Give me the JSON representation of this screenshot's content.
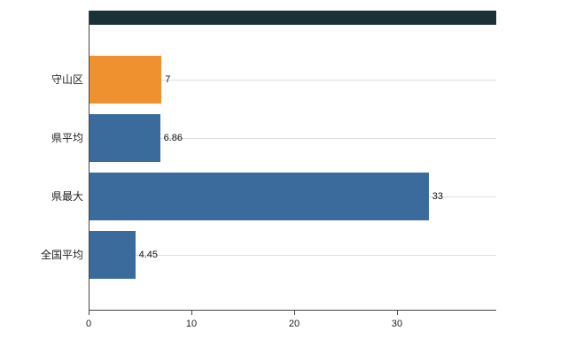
{
  "chart_data": {
    "type": "bar",
    "orientation": "horizontal",
    "title": "",
    "categories": [
      "守山区",
      "県平均",
      "県最大",
      "全国平均"
    ],
    "values": [
      7,
      6.86,
      33,
      4.45
    ],
    "value_labels": [
      "7",
      "6.86",
      "33",
      "4.45"
    ],
    "bar_colors": [
      "#f0912f",
      "#3a6b9c",
      "#3a6b9c",
      "#3a6b9c"
    ],
    "x_ticks": [
      "0",
      "10",
      "20",
      "30"
    ],
    "x_tick_values": [
      0,
      10,
      20,
      30
    ],
    "xlim": [
      0,
      39.6
    ],
    "grid": "horizontal gridlines at category centers",
    "legend": "none",
    "partial_top_bar": {
      "visible": true,
      "color": "#1a3138",
      "note": "dark bar of an off-screen category clipped at top edge"
    },
    "axis_color": "#444444",
    "gridline_color": "#dddddd"
  }
}
